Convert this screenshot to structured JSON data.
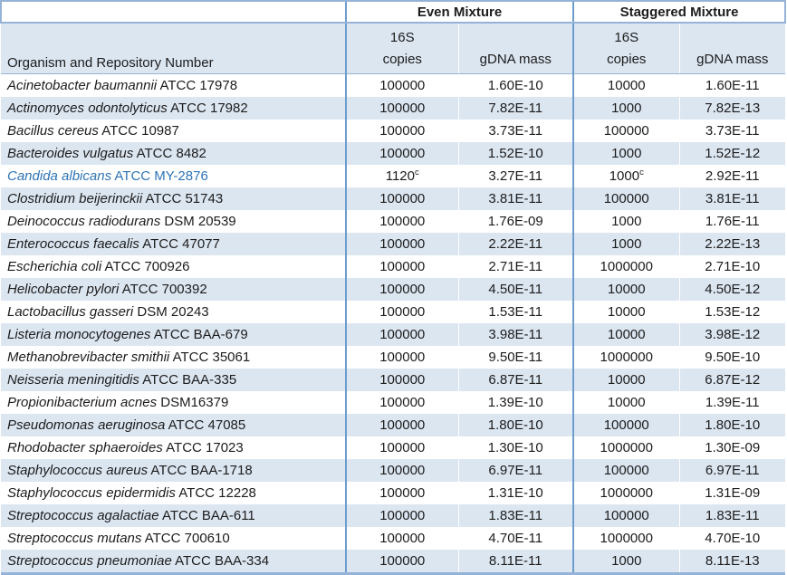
{
  "colors": {
    "row_band": "#DCE6F1",
    "border_blue": "#95B3D7",
    "group_separator_blue": "#6E9DCD",
    "highlight_text_blue": "#2E74B5"
  },
  "table": {
    "organism_header": "Organism and Repository Number",
    "group_headers": [
      "Even Mixture",
      "Staggered Mixture"
    ],
    "subheaders": {
      "copies_top": "16S",
      "copies_bottom": "copies",
      "mass": "gDNA mass"
    },
    "footnote_marker": "c",
    "rows": [
      {
        "name": "Acinetobacter baumannii",
        "id": "ATCC 17978",
        "even": {
          "copies": "100000",
          "mass": "1.60E-10"
        },
        "stag": {
          "copies": "10000",
          "mass": "1.60E-11"
        }
      },
      {
        "name": "Actinomyces odontolyticus",
        "id": "ATCC 17982",
        "even": {
          "copies": "100000",
          "mass": "7.82E-11"
        },
        "stag": {
          "copies": "1000",
          "mass": "7.82E-13"
        }
      },
      {
        "name": "Bacillus cereus",
        "id": "ATCC 10987",
        "even": {
          "copies": "100000",
          "mass": "3.73E-11"
        },
        "stag": {
          "copies": "100000",
          "mass": "3.73E-11"
        }
      },
      {
        "name": "Bacteroides vulgatus",
        "id": "ATCC 8482",
        "even": {
          "copies": "100000",
          "mass": "1.52E-10"
        },
        "stag": {
          "copies": "1000",
          "mass": "1.52E-12"
        }
      },
      {
        "name": "Candida albicans",
        "id": "ATCC MY-2876",
        "highlight": true,
        "even": {
          "copies": "1120",
          "sup": "c",
          "mass": "3.27E-11"
        },
        "stag": {
          "copies": "1000",
          "sup": "c",
          "mass": "2.92E-11"
        }
      },
      {
        "name": "Clostridium beijerinckii",
        "id": "ATCC 51743",
        "even": {
          "copies": "100000",
          "mass": "3.81E-11"
        },
        "stag": {
          "copies": "100000",
          "mass": "3.81E-11"
        }
      },
      {
        "name": "Deinococcus radiodurans",
        "id": "DSM 20539",
        "even": {
          "copies": "100000",
          "mass": "1.76E-09"
        },
        "stag": {
          "copies": "1000",
          "mass": "1.76E-11"
        }
      },
      {
        "name": "Enterococcus faecalis",
        "id": "ATCC 47077",
        "even": {
          "copies": "100000",
          "mass": "2.22E-11"
        },
        "stag": {
          "copies": "1000",
          "mass": "2.22E-13"
        }
      },
      {
        "name": "Escherichia coli",
        "id": "ATCC 700926",
        "even": {
          "copies": "100000",
          "mass": "2.71E-11"
        },
        "stag": {
          "copies": "1000000",
          "mass": "2.71E-10"
        }
      },
      {
        "name": "Helicobacter pylori",
        "id": "ATCC 700392",
        "even": {
          "copies": "100000",
          "mass": "4.50E-11"
        },
        "stag": {
          "copies": "10000",
          "mass": "4.50E-12"
        }
      },
      {
        "name": "Lactobacillus gasseri",
        "id": "DSM 20243",
        "even": {
          "copies": "100000",
          "mass": "1.53E-11"
        },
        "stag": {
          "copies": "10000",
          "mass": "1.53E-12"
        }
      },
      {
        "name": "Listeria monocytogenes",
        "id": "ATCC BAA-679",
        "even": {
          "copies": "100000",
          "mass": "3.98E-11"
        },
        "stag": {
          "copies": "10000",
          "mass": "3.98E-12"
        }
      },
      {
        "name": "Methanobrevibacter smithii",
        "id": "ATCC 35061",
        "even": {
          "copies": "100000",
          "mass": "9.50E-11"
        },
        "stag": {
          "copies": "1000000",
          "mass": "9.50E-10"
        }
      },
      {
        "name": "Neisseria meningitidis",
        "id": "ATCC BAA-335",
        "even": {
          "copies": "100000",
          "mass": "6.87E-11"
        },
        "stag": {
          "copies": "10000",
          "mass": "6.87E-12"
        }
      },
      {
        "name": "Propionibacterium acnes",
        "id": "DSM16379",
        "even": {
          "copies": "100000",
          "mass": "1.39E-10"
        },
        "stag": {
          "copies": "10000",
          "mass": "1.39E-11"
        }
      },
      {
        "name": "Pseudomonas aeruginosa",
        "id": "ATCC 47085",
        "even": {
          "copies": "100000",
          "mass": "1.80E-10"
        },
        "stag": {
          "copies": "100000",
          "mass": "1.80E-10"
        }
      },
      {
        "name": "Rhodobacter sphaeroides",
        "id": "ATCC 17023",
        "even": {
          "copies": "100000",
          "mass": "1.30E-10"
        },
        "stag": {
          "copies": "1000000",
          "mass": "1.30E-09"
        }
      },
      {
        "name": "Staphylococcus aureus",
        "id": "ATCC BAA-1718",
        "even": {
          "copies": "100000",
          "mass": "6.97E-11"
        },
        "stag": {
          "copies": "100000",
          "mass": "6.97E-11"
        }
      },
      {
        "name": "Staphylococcus epidermidis",
        "id": "ATCC 12228",
        "even": {
          "copies": "100000",
          "mass": "1.31E-10"
        },
        "stag": {
          "copies": "1000000",
          "mass": "1.31E-09"
        }
      },
      {
        "name": "Streptococcus agalactiae",
        "id": "ATCC BAA-611",
        "even": {
          "copies": "100000",
          "mass": "1.83E-11"
        },
        "stag": {
          "copies": "100000",
          "mass": "1.83E-11"
        }
      },
      {
        "name": "Streptococcus mutans",
        "id": "ATCC 700610",
        "even": {
          "copies": "100000",
          "mass": "4.70E-11"
        },
        "stag": {
          "copies": "1000000",
          "mass": "4.70E-10"
        }
      },
      {
        "name": "Streptococcus pneumoniae",
        "id": "ATCC BAA-334",
        "even": {
          "copies": "100000",
          "mass": "8.11E-11"
        },
        "stag": {
          "copies": "1000",
          "mass": "8.11E-13"
        }
      }
    ]
  }
}
